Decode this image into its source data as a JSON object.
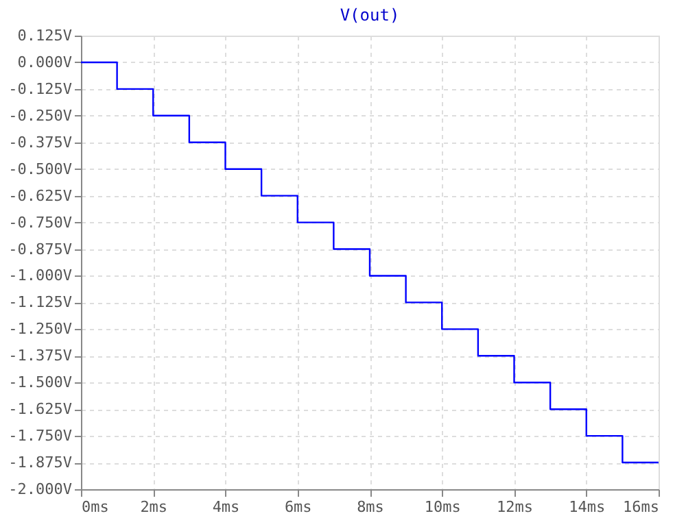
{
  "chart_data": {
    "type": "step",
    "title": "V(out)",
    "x": [
      0,
      1,
      2,
      3,
      4,
      5,
      6,
      7,
      8,
      9,
      10,
      11,
      12,
      13,
      14,
      15,
      16
    ],
    "series": [
      {
        "color": "#0000ff",
        "values": [
          0,
          -0.125,
          -0.25,
          -0.375,
          -0.5,
          -0.625,
          -0.75,
          -0.875,
          -1.0,
          -1.125,
          -1.25,
          -1.375,
          -1.5,
          -1.625,
          -1.75,
          -1.875,
          -1.875
        ]
      }
    ],
    "xlim": [
      0,
      16
    ],
    "xticks": [
      {
        "value": 0,
        "label": "0ms"
      },
      {
        "value": 2,
        "label": "2ms"
      },
      {
        "value": 4,
        "label": "4ms"
      },
      {
        "value": 6,
        "label": "6ms"
      },
      {
        "value": 8,
        "label": "8ms"
      },
      {
        "value": 10,
        "label": "10ms"
      },
      {
        "value": 12,
        "label": "12ms"
      },
      {
        "value": 14,
        "label": "14ms"
      },
      {
        "value": 16,
        "label": "16ms"
      }
    ],
    "ylim": [
      -2.0,
      0.125
    ],
    "yticks": [
      {
        "value": 0.125,
        "label": "0.125V"
      },
      {
        "value": 0,
        "label": "0.000V"
      },
      {
        "value": -0.125,
        "label": "-0.125V"
      },
      {
        "value": -0.25,
        "label": "-0.250V"
      },
      {
        "value": -0.375,
        "label": "-0.375V"
      },
      {
        "value": -0.5,
        "label": "-0.500V"
      },
      {
        "value": -0.625,
        "label": "-0.625V"
      },
      {
        "value": -0.75,
        "label": "-0.750V"
      },
      {
        "value": -0.875,
        "label": "-0.875V"
      },
      {
        "value": -1.0,
        "label": "-1.000V"
      },
      {
        "value": -1.125,
        "label": "-1.125V"
      },
      {
        "value": -1.25,
        "label": "-1.250V"
      },
      {
        "value": -1.375,
        "label": "-1.375V"
      },
      {
        "value": -1.5,
        "label": "-1.500V"
      },
      {
        "value": -1.625,
        "label": "-1.625V"
      },
      {
        "value": -1.75,
        "label": "-1.750V"
      },
      {
        "value": -1.875,
        "label": "-1.875V"
      },
      {
        "value": -2.0,
        "label": "-2.000V"
      }
    ],
    "grid": true,
    "line_style": "solid"
  }
}
